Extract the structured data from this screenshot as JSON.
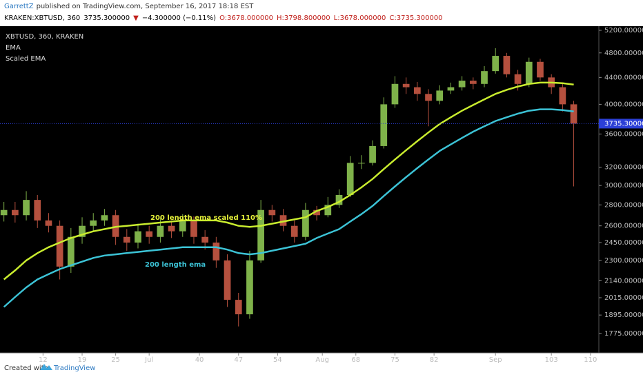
{
  "header": {
    "author": "GarrettZ",
    "published": "published on TradingView.com, September 16, 2017 18:18 EST",
    "symbol": "KRAKEN:XBTUSD, 360",
    "price": "3735.300000",
    "arrow": "▼",
    "change": "−4.300000 (−0.11%)",
    "open": "O:3678.000000",
    "high": "H:3798.800000",
    "low": "L:3678.000000",
    "close": "C:3735.300000"
  },
  "footer": {
    "created": "Created with",
    "brand": "TradingView"
  },
  "chart_data": {
    "type": "candlestick",
    "legend_title": "XBTUSD, 360, KRAKEN",
    "log_scale": true,
    "grid": false,
    "up_color": "#7fb24a",
    "down_color": "#b5503e",
    "x": [
      5,
      7,
      9,
      11,
      13,
      15,
      17,
      19,
      21,
      23,
      25,
      27,
      29,
      31,
      33,
      35,
      37,
      39,
      41,
      43,
      45,
      47,
      49,
      51,
      53,
      55,
      57,
      59,
      61,
      63,
      65,
      67,
      69,
      71,
      73,
      75,
      77,
      79,
      81,
      83,
      85,
      87,
      89,
      91,
      93,
      95,
      97,
      99,
      101,
      103,
      105,
      107
    ],
    "open": [
      2700,
      2750,
      2700,
      2850,
      2650,
      2600,
      2250,
      2500,
      2600,
      2650,
      2700,
      2500,
      2450,
      2550,
      2500,
      2600,
      2550,
      2650,
      2500,
      2450,
      2300,
      2000,
      1900,
      2300,
      2750,
      2700,
      2600,
      2500,
      2750,
      2700,
      2800,
      2900,
      3250,
      3250,
      3450,
      4000,
      4300,
      4250,
      4150,
      4050,
      4200,
      4250,
      4350,
      4300,
      4500,
      4750,
      4450,
      4300,
      4650,
      4400,
      4250,
      4000
    ],
    "high": [
      2830,
      2830,
      2940,
      2900,
      2720,
      2650,
      2580,
      2680,
      2720,
      2760,
      2750,
      2570,
      2620,
      2600,
      2670,
      2650,
      2710,
      2690,
      2560,
      2500,
      2350,
      2050,
      2380,
      2850,
      2800,
      2760,
      2650,
      2820,
      2790,
      2880,
      2960,
      3330,
      3340,
      3520,
      4100,
      4420,
      4400,
      4330,
      4220,
      4280,
      4320,
      4420,
      4400,
      4580,
      4880,
      4800,
      4520,
      4720,
      4700,
      4450,
      4300,
      4050
    ],
    "low": [
      2640,
      2630,
      2650,
      2580,
      2540,
      2150,
      2200,
      2440,
      2550,
      2600,
      2430,
      2380,
      2400,
      2440,
      2450,
      2490,
      2500,
      2440,
      2390,
      2240,
      1950,
      1820,
      1870,
      2280,
      2640,
      2550,
      2450,
      2470,
      2650,
      2680,
      2770,
      2880,
      3180,
      3220,
      3420,
      3950,
      4150,
      4050,
      3700,
      4000,
      4150,
      4200,
      4220,
      4250,
      4460,
      4400,
      4200,
      4250,
      4350,
      4150,
      3900,
      2990
    ],
    "close": [
      2750,
      2700,
      2850,
      2650,
      2600,
      2250,
      2500,
      2600,
      2650,
      2700,
      2500,
      2450,
      2550,
      2500,
      2600,
      2550,
      2650,
      2500,
      2450,
      2300,
      2000,
      1900,
      2300,
      2750,
      2700,
      2600,
      2500,
      2750,
      2700,
      2800,
      2900,
      3250,
      3250,
      3450,
      4000,
      4300,
      4250,
      4150,
      4050,
      4200,
      4250,
      4350,
      4300,
      4500,
      4750,
      4450,
      4300,
      4650,
      4400,
      4250,
      4000,
      3735
    ],
    "series": [
      {
        "name": "EMA",
        "color": "#3cc3d6",
        "values": [
          1950,
          2020,
          2090,
          2150,
          2190,
          2230,
          2260,
          2290,
          2320,
          2340,
          2350,
          2360,
          2370,
          2380,
          2390,
          2400,
          2410,
          2410,
          2410,
          2410,
          2390,
          2360,
          2350,
          2360,
          2380,
          2400,
          2420,
          2440,
          2490,
          2530,
          2570,
          2640,
          2710,
          2790,
          2890,
          2990,
          3090,
          3190,
          3290,
          3390,
          3470,
          3550,
          3630,
          3700,
          3770,
          3820,
          3870,
          3910,
          3930,
          3930,
          3920,
          3900
        ]
      },
      {
        "name": "Scaled EMA",
        "color": "#c9ec2e",
        "values": [
          2150,
          2220,
          2300,
          2360,
          2410,
          2450,
          2490,
          2520,
          2550,
          2570,
          2590,
          2600,
          2610,
          2620,
          2630,
          2640,
          2650,
          2650,
          2650,
          2650,
          2630,
          2600,
          2590,
          2600,
          2620,
          2640,
          2660,
          2680,
          2740,
          2780,
          2830,
          2900,
          2980,
          3070,
          3180,
          3290,
          3400,
          3510,
          3620,
          3730,
          3820,
          3910,
          3990,
          4070,
          4150,
          4210,
          4260,
          4300,
          4320,
          4320,
          4310,
          4290
        ]
      }
    ],
    "annotations": [
      {
        "text": "200 length ema scaled 110%",
        "color": "#e6f23a"
      },
      {
        "text": "200 length ema",
        "color": "#3cc3d6"
      }
    ],
    "last_price": {
      "value": 3735.3,
      "label": "3735.300000"
    },
    "xlim": [
      4.3,
      111.5
    ],
    "xticks": [
      12,
      19,
      25,
      {
        "value": 31,
        "label": "Jul"
      },
      40,
      47,
      54,
      {
        "value": 62,
        "label": "Aug"
      },
      68,
      75,
      82,
      {
        "value": 93,
        "label": "Sep"
      },
      103,
      110
    ],
    "ylim": [
      1686,
      5251
    ],
    "yticks": [
      {
        "value": 1775,
        "label": "1775.000000"
      },
      {
        "value": 1895,
        "label": "1895.000000"
      },
      {
        "value": 2015,
        "label": "2015.000000"
      },
      {
        "value": 2140,
        "label": "2140.000000"
      },
      {
        "value": 2300,
        "label": "2300.000000"
      },
      {
        "value": 2450,
        "label": "2450.000000"
      },
      {
        "value": 2600,
        "label": "2600.000000"
      },
      {
        "value": 2800,
        "label": "2800.000000"
      },
      {
        "value": 3000,
        "label": "3000.000000"
      },
      {
        "value": 3200,
        "label": "3200.000000"
      },
      {
        "value": 3600,
        "label": "3600.000000"
      },
      {
        "value": 4000,
        "label": "4000.000000"
      },
      {
        "value": 4400,
        "label": "4400.000000"
      },
      {
        "value": 4800,
        "label": "4800.000000"
      },
      {
        "value": 5200,
        "label": "5200.000000"
      }
    ]
  }
}
